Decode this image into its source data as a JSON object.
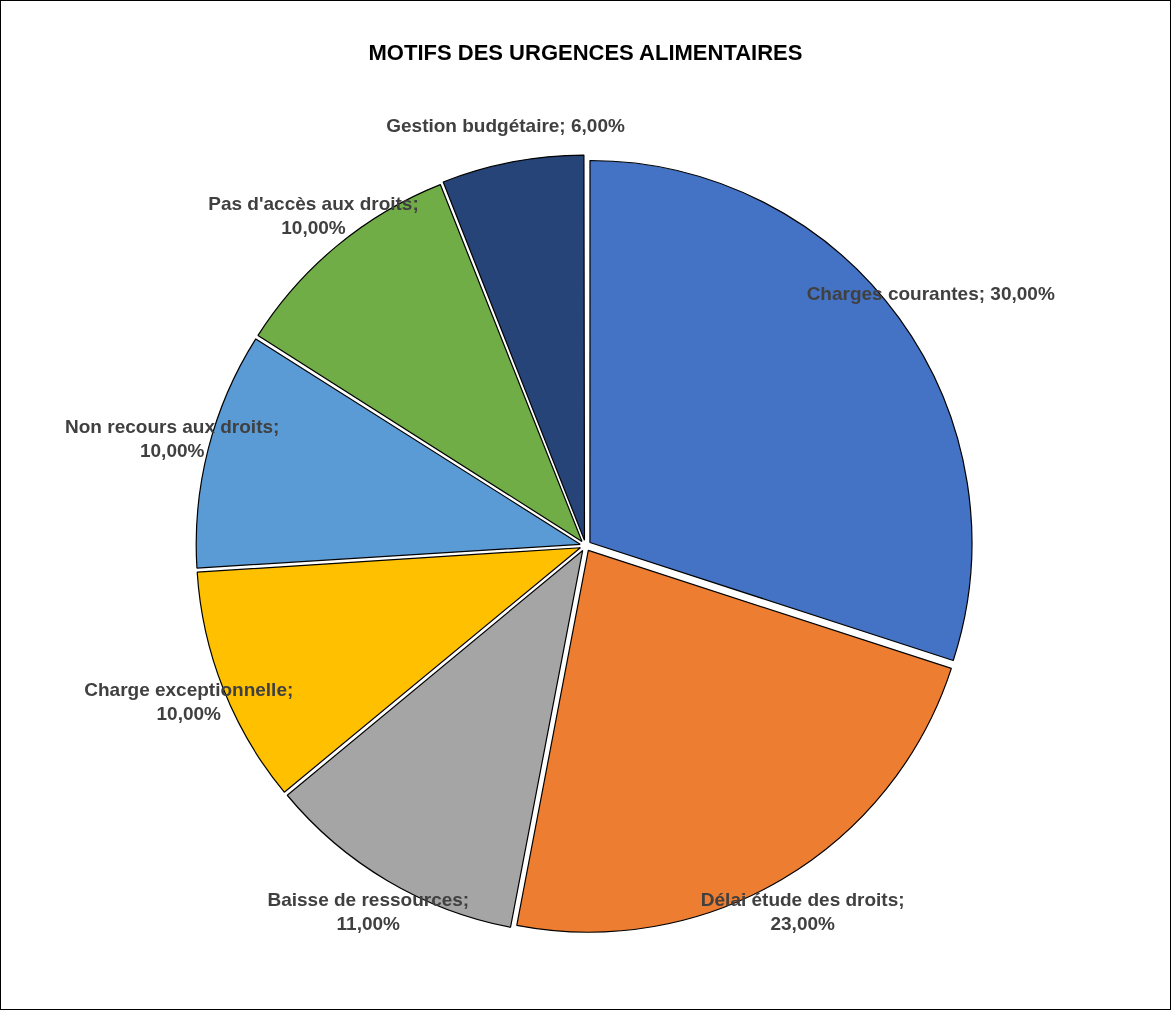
{
  "chart_data": {
    "type": "pie",
    "title": "MOTIFS DES URGENCES ALIMENTAIRES",
    "categories": [
      "Charges courantes",
      "Délai étude des droits",
      "Baisse de ressources",
      "Charge exceptionnelle",
      "Non recours aux droits",
      "Pas d'accès aux droits",
      "Gestion budgétaire"
    ],
    "values": [
      30,
      23,
      11,
      10,
      10,
      10,
      6
    ],
    "colors": [
      "#4472c4",
      "#ed7d31",
      "#a5a5a5",
      "#ffc000",
      "#5b9bd5",
      "#70ad47",
      "#264478"
    ],
    "value_labels": [
      "; 30,00%",
      "; 23,00%",
      "; 11,00%",
      "; 10,00%",
      "; 10,00%",
      "; 10,00%",
      "; 6,00%"
    ],
    "legend": false
  }
}
